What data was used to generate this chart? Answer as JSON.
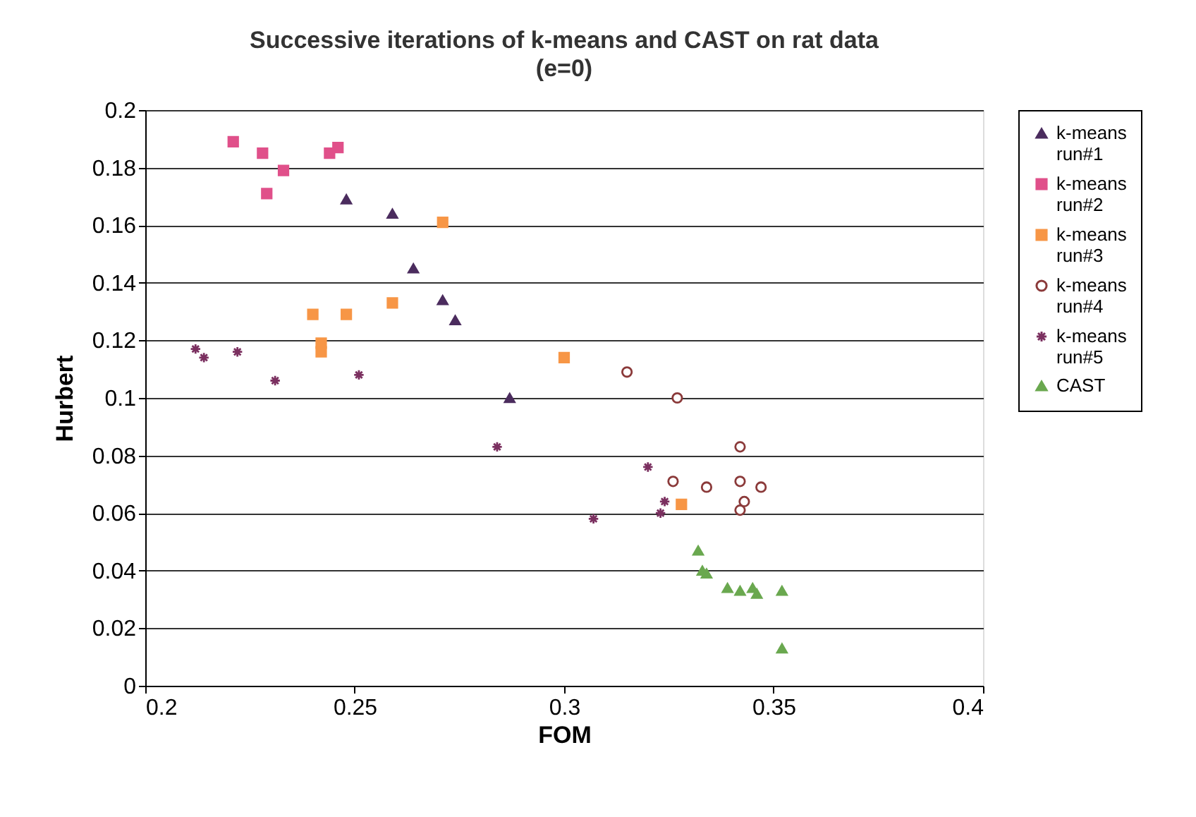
{
  "chart_data": {
    "type": "scatter",
    "title": "Successive iterations of k-means and CAST on rat data",
    "subtitle": "(e=0)",
    "xlabel": "FOM",
    "ylabel": "Hurbert",
    "xlim": [
      0.2,
      0.4
    ],
    "xticks": [
      0.2,
      0.25,
      0.3,
      0.35,
      0.4
    ],
    "ylim": [
      0,
      0.2
    ],
    "yticks": [
      0,
      0.02,
      0.04,
      0.06,
      0.08,
      0.1,
      0.12,
      0.14,
      0.16,
      0.18,
      0.2
    ],
    "grid": "y",
    "legend": "right",
    "series": [
      {
        "name": "k-means run#1",
        "color": "#4b2c5e",
        "marker": "triangle",
        "x": [
          0.248,
          0.259,
          0.264,
          0.271,
          0.274,
          0.287
        ],
        "values": [
          0.169,
          0.164,
          0.145,
          0.134,
          0.127,
          0.1
        ]
      },
      {
        "name": "k-means run#2",
        "color": "#e0508a",
        "marker": "square",
        "x": [
          0.221,
          0.228,
          0.229,
          0.233,
          0.244,
          0.246
        ],
        "values": [
          0.189,
          0.185,
          0.171,
          0.179,
          0.185,
          0.187
        ]
      },
      {
        "name": "k-means run#3",
        "color": "#f79646",
        "marker": "square",
        "x": [
          0.24,
          0.242,
          0.242,
          0.248,
          0.259,
          0.271,
          0.3,
          0.328
        ],
        "values": [
          0.129,
          0.119,
          0.116,
          0.129,
          0.133,
          0.161,
          0.114,
          0.063
        ]
      },
      {
        "name": "k-means run#4",
        "color": "#8b3a3a",
        "marker": "circle",
        "x": [
          0.315,
          0.327,
          0.342,
          0.326,
          0.334,
          0.342,
          0.347,
          0.343,
          0.342
        ],
        "values": [
          0.109,
          0.1,
          0.083,
          0.071,
          0.069,
          0.071,
          0.069,
          0.064,
          0.061
        ]
      },
      {
        "name": "k-means run#5",
        "color": "#7b3060",
        "marker": "cross",
        "x": [
          0.212,
          0.214,
          0.222,
          0.231,
          0.251,
          0.284,
          0.32,
          0.324,
          0.307,
          0.323
        ],
        "values": [
          0.117,
          0.114,
          0.116,
          0.106,
          0.108,
          0.083,
          0.076,
          0.064,
          0.058,
          0.06
        ]
      },
      {
        "name": "CAST",
        "color": "#6aa84f",
        "marker": "triangle",
        "x": [
          0.332,
          0.333,
          0.334,
          0.339,
          0.342,
          0.345,
          0.346,
          0.352,
          0.352
        ],
        "values": [
          0.047,
          0.04,
          0.039,
          0.034,
          0.033,
          0.034,
          0.032,
          0.033,
          0.013
        ]
      }
    ]
  }
}
